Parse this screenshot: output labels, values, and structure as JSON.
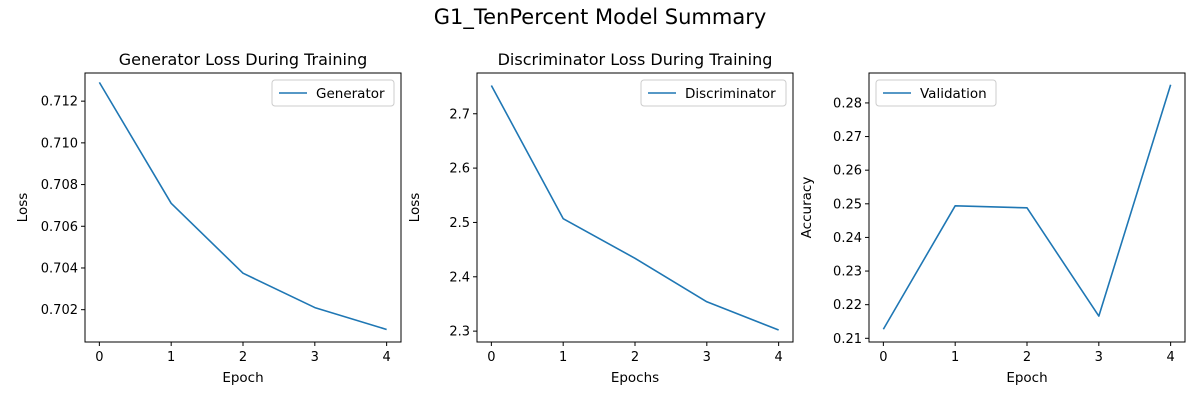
{
  "figure": {
    "suptitle": "G1_TenPercent Model Summary"
  },
  "chart_data": [
    {
      "type": "line",
      "title": "Generator Loss During Training",
      "xlabel": "Epoch",
      "ylabel": "Loss",
      "x": [
        0,
        1,
        2,
        3,
        4
      ],
      "xlim": [
        -0.2,
        4.2
      ],
      "ylim": [
        0.70045,
        0.71335
      ],
      "xticks": [
        0,
        1,
        2,
        3,
        4
      ],
      "yticks": [
        0.702,
        0.704,
        0.706,
        0.708,
        0.71,
        0.712
      ],
      "ytick_decimals": 3,
      "grid": false,
      "legend_position": "top-right",
      "series": [
        {
          "name": "Generator",
          "color": "#1f77b4",
          "values": [
            0.7129,
            0.7071,
            0.70375,
            0.7021,
            0.70105
          ]
        }
      ]
    },
    {
      "type": "line",
      "title": "Discriminator Loss During Training",
      "xlabel": "Epochs",
      "ylabel": "Loss",
      "x": [
        0,
        1,
        2,
        3,
        4
      ],
      "xlim": [
        -0.2,
        4.2
      ],
      "ylim": [
        2.28,
        2.775
      ],
      "xticks": [
        0,
        1,
        2,
        3,
        4
      ],
      "yticks": [
        2.3,
        2.4,
        2.5,
        2.6,
        2.7
      ],
      "ytick_decimals": 1,
      "grid": false,
      "legend_position": "top-right",
      "series": [
        {
          "name": "Discriminator",
          "color": "#1f77b4",
          "values": [
            2.752,
            2.507,
            2.434,
            2.354,
            2.302
          ]
        }
      ]
    },
    {
      "type": "line",
      "title": "",
      "xlabel": "Epoch",
      "ylabel": "Accuracy",
      "x": [
        0,
        1,
        2,
        3,
        4
      ],
      "xlim": [
        -0.2,
        4.2
      ],
      "ylim": [
        0.2089,
        0.2889
      ],
      "xticks": [
        0,
        1,
        2,
        3,
        4
      ],
      "yticks": [
        0.21,
        0.22,
        0.23,
        0.24,
        0.25,
        0.26,
        0.27,
        0.28
      ],
      "ytick_decimals": 2,
      "grid": false,
      "legend_position": "top-left",
      "series": [
        {
          "name": "Validation",
          "color": "#1f77b4",
          "values": [
            0.2127,
            0.2494,
            0.2488,
            0.2166,
            0.2854
          ]
        }
      ]
    }
  ]
}
